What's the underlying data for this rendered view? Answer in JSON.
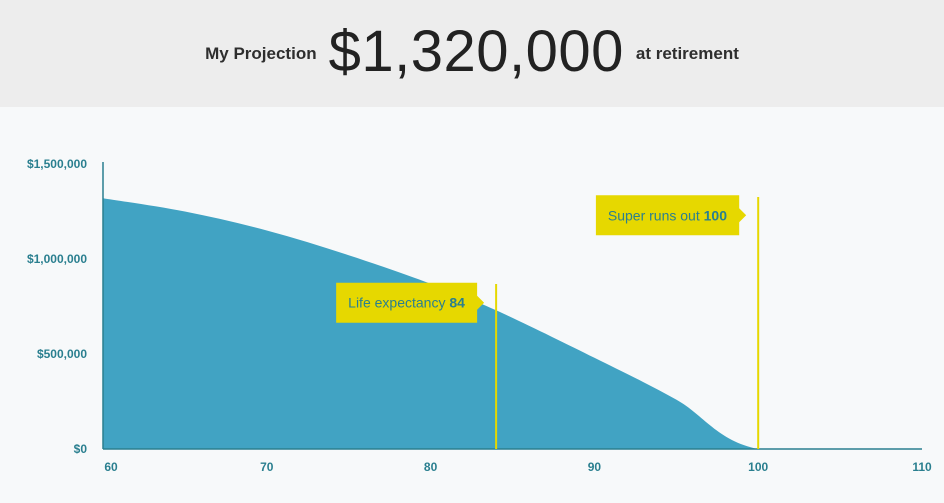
{
  "header": {
    "lead_text": "My Projection",
    "amount": "$1,320,000",
    "tail_text": "at retirement"
  },
  "chart_data": {
    "type": "area",
    "x": [
      60,
      65,
      70,
      75,
      80,
      84,
      90,
      95,
      100,
      110
    ],
    "values": [
      1320000,
      1250000,
      1150000,
      1020000,
      870000,
      730000,
      480000,
      260000,
      0,
      0
    ],
    "xlim": [
      60,
      110
    ],
    "ylim": [
      0,
      1500000
    ],
    "x_ticks": [
      60,
      70,
      80,
      90,
      100,
      110
    ],
    "y_ticks": [
      {
        "value": 0,
        "label": "$0"
      },
      {
        "value": 500000,
        "label": "$500,000"
      },
      {
        "value": 1000000,
        "label": "$1,000,000"
      },
      {
        "value": 1500000,
        "label": "$1,500,000"
      }
    ],
    "grid": false,
    "colors": {
      "area": "#41a3c3",
      "axis": "#2a7f8f",
      "marker": "#e6d800",
      "callout_bg": "#e6d800",
      "callout_text": "#2a7f8f"
    },
    "annotations": [
      {
        "id": "life-expectancy",
        "x": 84,
        "label": "Life expectancy",
        "value": "84",
        "side": "left",
        "y_level": 770000
      },
      {
        "id": "super-runs-out",
        "x": 100,
        "label": "Super runs out",
        "value": "100",
        "side": "left",
        "y_level": 1230000
      }
    ]
  }
}
